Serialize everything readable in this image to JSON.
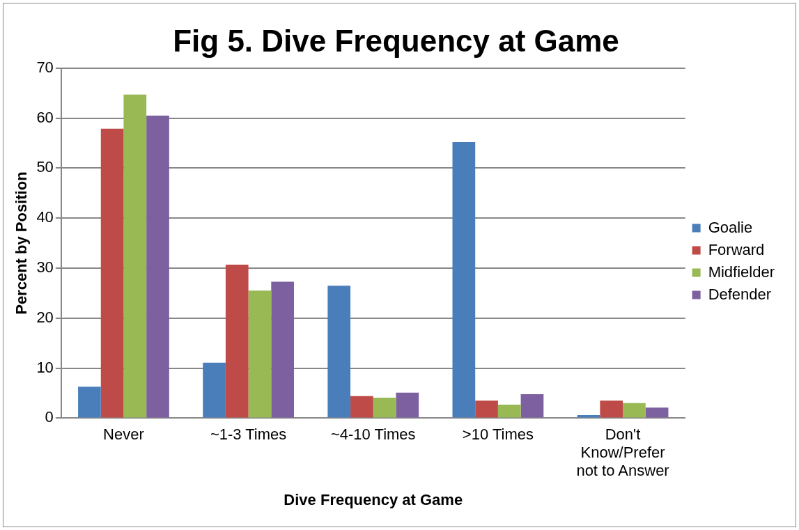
{
  "chart_data": {
    "type": "bar",
    "title": "Fig 5. Dive Frequency at Game",
    "xlabel": "Dive Frequency at Game",
    "ylabel": "Percent by Position",
    "categories": [
      "Never",
      "~1-3 Times",
      "~4-10 Times",
      ">10 Times",
      "Don't Know/Prefer not to Answer"
    ],
    "series": [
      {
        "name": "Goalie",
        "color": "#4a7ebb",
        "values": [
          6.3,
          11.1,
          26.5,
          55.2,
          0.6
        ]
      },
      {
        "name": "Forward",
        "color": "#be4b48",
        "values": [
          57.9,
          30.7,
          4.4,
          3.5,
          3.5
        ]
      },
      {
        "name": "Midfielder",
        "color": "#98b954",
        "values": [
          64.7,
          25.5,
          4.1,
          2.7,
          3.0
        ]
      },
      {
        "name": "Defender",
        "color": "#7d60a0",
        "values": [
          60.5,
          27.3,
          5.1,
          4.8,
          2.1
        ]
      }
    ],
    "ylim": [
      0,
      70
    ],
    "yticks": [
      0,
      10,
      20,
      30,
      40,
      50,
      60,
      70
    ],
    "grid": "y",
    "legend": "right"
  }
}
